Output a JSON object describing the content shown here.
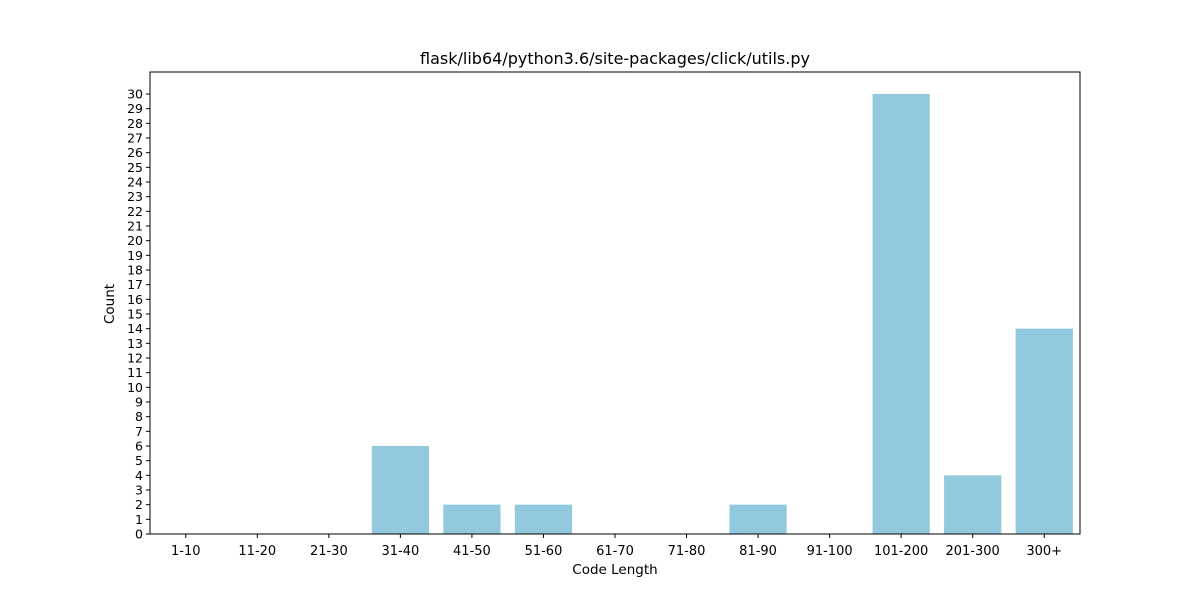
{
  "chart_data": {
    "type": "bar",
    "title": "flask/lib64/python3.6/site-packages/click/utils.py",
    "xlabel": "Code Length",
    "ylabel": "Count",
    "categories": [
      "1-10",
      "11-20",
      "21-30",
      "31-40",
      "41-50",
      "51-60",
      "61-70",
      "71-80",
      "81-90",
      "91-100",
      "101-200",
      "201-300",
      "300+"
    ],
    "values": [
      0,
      0,
      0,
      6,
      2,
      2,
      0,
      0,
      2,
      0,
      30,
      4,
      14
    ],
    "ylim": [
      0,
      31.5
    ],
    "yticks": [
      0,
      1,
      2,
      3,
      4,
      5,
      6,
      7,
      8,
      9,
      10,
      11,
      12,
      13,
      14,
      15,
      16,
      17,
      18,
      19,
      20,
      21,
      22,
      23,
      24,
      25,
      26,
      27,
      28,
      29,
      30
    ],
    "bar_color": "#92c9de",
    "grid": false,
    "legend": false
  }
}
